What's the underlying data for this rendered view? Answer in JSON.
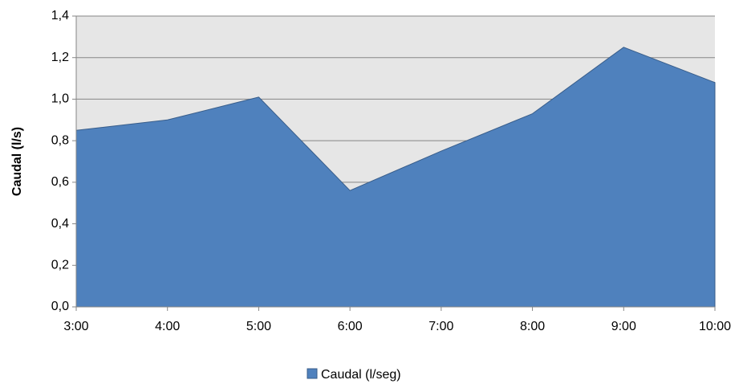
{
  "chart_data": {
    "type": "area",
    "categories": [
      "3:00",
      "4:00",
      "5:00",
      "6:00",
      "7:00",
      "8:00",
      "9:00",
      "10:00"
    ],
    "series": [
      {
        "name": "Caudal (l/seg)",
        "values": [
          0.85,
          0.9,
          1.01,
          0.56,
          0.75,
          0.93,
          1.25,
          1.08
        ]
      }
    ],
    "ylabel": "Caudal (l/s)",
    "xlabel": "",
    "ylim": [
      0,
      1.4
    ],
    "yticks": [
      "0,0",
      "0,2",
      "0,4",
      "0,6",
      "0,8",
      "1,0",
      "1,2",
      "1,4"
    ],
    "grid": true,
    "legend_position": "bottom",
    "colors": {
      "area_fill": "#4f81bd",
      "area_stroke": "#385d8a",
      "plot_background": "#e6e6e6",
      "gridline": "#868686",
      "axis": "#868686"
    }
  }
}
